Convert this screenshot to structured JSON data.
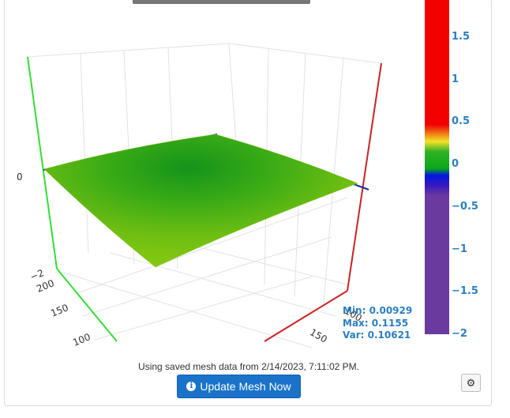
{
  "colorbar": {
    "ticks": [
      "1.5",
      "1",
      "0.5",
      "0",
      "−0.5",
      "−1",
      "−1.5",
      "−2"
    ],
    "tick_values": [
      1.5,
      1,
      0.5,
      0,
      -0.5,
      -1,
      -1.5,
      -2
    ],
    "range": [
      -2,
      2
    ],
    "colors": [
      "#f20000",
      "#f6d020",
      "#0aa81a",
      "#0018e0",
      "#6a3a9e"
    ]
  },
  "stats": {
    "min": "Min: 0.00929",
    "max": "Max: 0.1155",
    "var": "Var: 0.10621"
  },
  "axes": {
    "z_tick_zero": "0",
    "z_tick_neg2": "−2",
    "y_tick_200": "200",
    "y_tick_150": "150",
    "y_tick_100": "100",
    "x_tick_150": "150",
    "x_tick_100": "100"
  },
  "footer": {
    "saved_text": "Using saved mesh data from 2/14/2023, 7:11:02 PM.",
    "update_button": "Update Mesh Now"
  },
  "icons": {
    "info": "info-circle-icon",
    "settings": "gear-icon"
  }
}
